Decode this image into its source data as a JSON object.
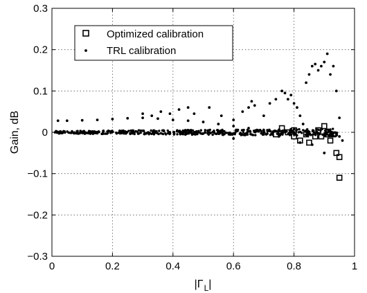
{
  "chart_data": {
    "type": "scatter",
    "xlabel": "|Γ_L|",
    "ylabel": "Gain, dB",
    "xlim": [
      0,
      1
    ],
    "ylim": [
      -0.3,
      0.3
    ],
    "xticks": [
      0,
      0.2,
      0.4,
      0.6,
      0.8,
      1
    ],
    "yticks": [
      -0.3,
      -0.2,
      -0.1,
      0,
      0.1,
      0.2,
      0.3
    ],
    "xtick_labels": [
      "0",
      "0.2",
      "0.4",
      "0.6",
      "0.8",
      "1"
    ],
    "ytick_labels": [
      "−0.3",
      "−0.2",
      "−0.1",
      "0",
      "0.1",
      "0.2",
      "0.3"
    ],
    "grid": true,
    "legend_position": "top-left",
    "series": [
      {
        "name": "Optimized calibration",
        "marker": "square",
        "x": [
          0.74,
          0.76,
          0.78,
          0.8,
          0.8,
          0.82,
          0.84,
          0.85,
          0.87,
          0.88,
          0.89,
          0.9,
          0.91,
          0.92,
          0.93,
          0.94,
          0.95,
          0.95
        ],
        "y": [
          -0.005,
          0.01,
          0.0,
          -0.01,
          0.005,
          -0.02,
          -0.005,
          -0.025,
          -0.01,
          0.005,
          -0.01,
          0.015,
          -0.005,
          -0.02,
          -0.005,
          -0.05,
          -0.06,
          -0.11
        ]
      },
      {
        "name": "TRL calibration",
        "marker": "dot",
        "x": [
          0.02,
          0.05,
          0.1,
          0.15,
          0.2,
          0.25,
          0.3,
          0.35,
          0.4,
          0.45,
          0.5,
          0.55,
          0.6,
          0.65,
          0.7,
          0.75,
          0.8,
          0.85,
          0.9,
          0.95,
          0.3,
          0.33,
          0.36,
          0.39,
          0.42,
          0.45,
          0.47,
          0.52,
          0.56,
          0.6,
          0.63,
          0.65,
          0.66,
          0.67,
          0.7,
          0.72,
          0.74,
          0.76,
          0.77,
          0.78,
          0.79,
          0.8,
          0.81,
          0.82,
          0.83,
          0.84,
          0.85,
          0.86,
          0.87,
          0.88,
          0.89,
          0.9,
          0.91,
          0.92,
          0.93,
          0.94,
          0.95,
          0.96,
          0.6,
          0.7,
          0.75,
          0.82,
          0.86,
          0.9
        ],
        "y": [
          0.028,
          0.028,
          0.029,
          0.03,
          0.032,
          0.034,
          0.035,
          0.033,
          0.03,
          0.028,
          0.025,
          0.02,
          0.015,
          0.01,
          0.005,
          0.003,
          0.0,
          -0.005,
          -0.005,
          -0.01,
          0.045,
          0.04,
          0.05,
          0.045,
          0.055,
          0.06,
          0.045,
          0.06,
          0.04,
          0.03,
          0.05,
          0.06,
          0.075,
          0.065,
          0.04,
          0.07,
          0.08,
          0.1,
          0.095,
          0.08,
          0.09,
          0.07,
          0.06,
          0.04,
          0.02,
          0.12,
          0.14,
          0.16,
          0.165,
          0.15,
          0.16,
          0.17,
          0.19,
          0.14,
          0.16,
          0.1,
          0.035,
          -0.02,
          -0.015,
          -0.005,
          -0.01,
          -0.025,
          -0.03,
          -0.05
        ]
      }
    ]
  }
}
